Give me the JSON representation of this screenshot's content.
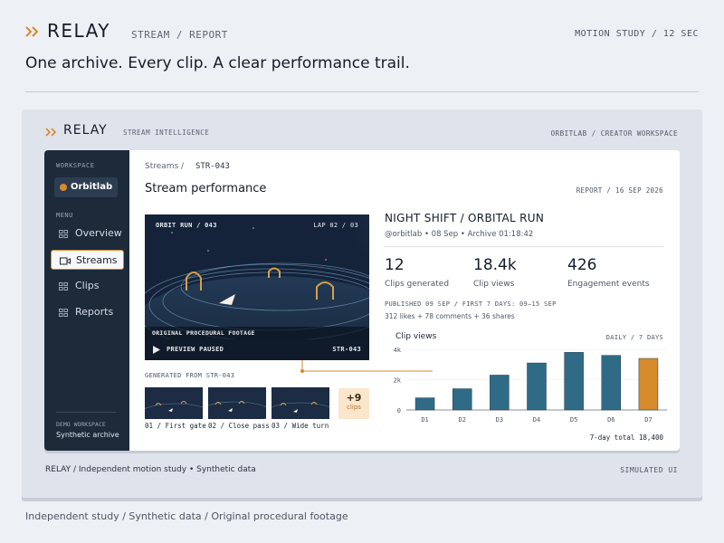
{
  "header": {
    "brand": "RELAY",
    "breadcrumb": "STREAM / REPORT",
    "meta": "MOTION STUDY / 12 SEC",
    "tagline": "One archive. Every clip. A clear performance trail."
  },
  "frame": {
    "brand": "RELAY",
    "subtitle": "STREAM INTELLIGENCE",
    "workspace_path": "ORBITLAB / CREATOR WORKSPACE",
    "footer_left": "RELAY / Independent motion study • Synthetic data",
    "footer_right": "SIMULATED UI"
  },
  "sidebar": {
    "workspace_label": "WORKSPACE",
    "workspace_name": "Orbitlab",
    "menu_label": "MENU",
    "items": [
      {
        "label": "Overview",
        "icon": "grid-icon"
      },
      {
        "label": "Streams",
        "icon": "video-icon",
        "active": true
      },
      {
        "label": "Clips",
        "icon": "grid-icon"
      },
      {
        "label": "Reports",
        "icon": "grid-icon"
      }
    ],
    "demo_label": "DEMO WORKSPACE",
    "demo_value": "Synthetic archive"
  },
  "main": {
    "breadcrumb_root": "Streams",
    "breadcrumb_sep": "/",
    "breadcrumb_id": "STR-043",
    "title": "Stream performance",
    "report_meta": "REPORT / 16 SEP 2026",
    "video": {
      "top_left": "ORBIT RUN / 043",
      "top_right": "LAP 02 / 03",
      "caption": "ORIGINAL PROCEDURAL FOOTAGE",
      "status": "PREVIEW PAUSED",
      "id": "STR-043"
    },
    "generated_label": "GENERATED FROM STR-043",
    "clips": [
      {
        "label": "01 / First gate"
      },
      {
        "label": "02 / Close pass"
      },
      {
        "label": "03 / Wide turn"
      }
    ],
    "more_count": "+9",
    "more_label": "clips",
    "stream_title": "NIGHT SHIFT / ORBITAL RUN",
    "stream_meta": "@orbitlab • 08 Sep • Archive 01:18:42",
    "stats": [
      {
        "value": "12",
        "label": "Clips generated"
      },
      {
        "value": "18.4k",
        "label": "Clip views"
      },
      {
        "value": "426",
        "label": "Engagement events"
      }
    ],
    "published": "PUBLISHED 09 SEP / FIRST 7 DAYS: 09–15 SEP",
    "engagement": "312 likes + 78 comments + 36 shares",
    "chart_title": "Clip views",
    "chart_period": "DAILY / 7 DAYS",
    "chart_total": "7-day total 18,400"
  },
  "colors": {
    "accent": "#d68a2a",
    "bar": "#2f6b87",
    "sidebar": "#1c2a3a"
  },
  "footnote": "Independent study / Synthetic data / Original procedural footage",
  "chart_data": {
    "type": "bar",
    "title": "Clip views",
    "categories": [
      "D1",
      "D2",
      "D3",
      "D4",
      "D5",
      "D6",
      "D7"
    ],
    "values": [
      800,
      1400,
      2300,
      3100,
      3800,
      3600,
      3400
    ],
    "y_ticks": [
      "0",
      "2k",
      "4k"
    ],
    "ylim": [
      0,
      4000
    ],
    "highlight_index": 6
  }
}
